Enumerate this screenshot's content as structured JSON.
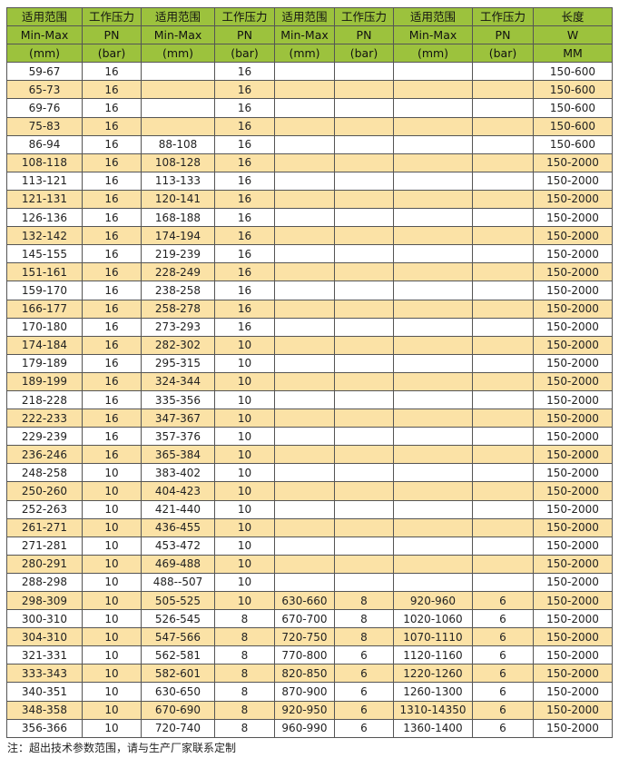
{
  "table": {
    "header": [
      [
        "适用范围",
        "工作压力",
        "适用范围",
        "工作压力",
        "适用范围",
        "工作压力",
        "适用范围",
        "工作压力",
        "长度"
      ],
      [
        "Min-Max",
        "PN",
        "Min-Max",
        "PN",
        "Min-Max",
        "PN",
        "Min-Max",
        "PN",
        "W"
      ],
      [
        "(mm)",
        "(bar)",
        "(mm)",
        "(bar)",
        "(mm)",
        "(bar)",
        "(mm)",
        "(bar)",
        "MM"
      ]
    ],
    "rows": [
      [
        "59-67",
        "16",
        null,
        "16",
        null,
        null,
        null,
        null,
        "150-600"
      ],
      [
        "65-73",
        "16",
        null,
        "16",
        null,
        null,
        null,
        null,
        "150-600"
      ],
      [
        "69-76",
        "16",
        null,
        "16",
        null,
        null,
        null,
        null,
        "150-600"
      ],
      [
        "75-83",
        "16",
        null,
        "16",
        null,
        null,
        null,
        null,
        "150-600"
      ],
      [
        "86-94",
        "16",
        "88-108",
        "16",
        null,
        null,
        null,
        null,
        "150-600"
      ],
      [
        "108-118",
        "16",
        "108-128",
        "16",
        null,
        null,
        null,
        null,
        "150-2000"
      ],
      [
        "113-121",
        "16",
        "113-133",
        "16",
        null,
        null,
        null,
        null,
        "150-2000"
      ],
      [
        "121-131",
        "16",
        "120-141",
        "16",
        null,
        null,
        null,
        null,
        "150-2000"
      ],
      [
        "126-136",
        "16",
        "168-188",
        "16",
        null,
        null,
        null,
        null,
        "150-2000"
      ],
      [
        "132-142",
        "16",
        "174-194",
        "16",
        null,
        null,
        null,
        null,
        "150-2000"
      ],
      [
        "145-155",
        "16",
        "219-239",
        "16",
        null,
        null,
        null,
        null,
        "150-2000"
      ],
      [
        "151-161",
        "16",
        "228-249",
        "16",
        null,
        null,
        null,
        null,
        "150-2000"
      ],
      [
        "159-170",
        "16",
        "238-258",
        "16",
        null,
        null,
        null,
        null,
        "150-2000"
      ],
      [
        "166-177",
        "16",
        "258-278",
        "16",
        null,
        null,
        null,
        null,
        "150-2000"
      ],
      [
        "170-180",
        "16",
        "273-293",
        "16",
        null,
        null,
        null,
        null,
        "150-2000"
      ],
      [
        "174-184",
        "16",
        "282-302",
        "10",
        null,
        null,
        null,
        null,
        "150-2000"
      ],
      [
        "179-189",
        "16",
        "295-315",
        "10",
        null,
        null,
        null,
        null,
        "150-2000"
      ],
      [
        "189-199",
        "16",
        "324-344",
        "10",
        null,
        null,
        null,
        null,
        "150-2000"
      ],
      [
        "218-228",
        "16",
        "335-356",
        "10",
        null,
        null,
        null,
        null,
        "150-2000"
      ],
      [
        "222-233",
        "16",
        "347-367",
        "10",
        null,
        null,
        null,
        null,
        "150-2000"
      ],
      [
        "229-239",
        "16",
        "357-376",
        "10",
        null,
        null,
        null,
        null,
        "150-2000"
      ],
      [
        "236-246",
        "16",
        "365-384",
        "10",
        null,
        null,
        null,
        null,
        "150-2000"
      ],
      [
        "248-258",
        "10",
        "383-402",
        "10",
        null,
        null,
        null,
        null,
        "150-2000"
      ],
      [
        "250-260",
        "10",
        "404-423",
        "10",
        null,
        null,
        null,
        null,
        "150-2000"
      ],
      [
        "252-263",
        "10",
        "421-440",
        "10",
        null,
        null,
        null,
        null,
        "150-2000"
      ],
      [
        "261-271",
        "10",
        "436-455",
        "10",
        null,
        null,
        null,
        null,
        "150-2000"
      ],
      [
        "271-281",
        "10",
        "453-472",
        "10",
        null,
        null,
        null,
        null,
        "150-2000"
      ],
      [
        "280-291",
        "10",
        "469-488",
        "10",
        null,
        null,
        null,
        null,
        "150-2000"
      ],
      [
        "288-298",
        "10",
        "488--507",
        "10",
        null,
        null,
        null,
        null,
        "150-2000"
      ],
      [
        "298-309",
        "10",
        "505-525",
        "10",
        "630-660",
        "8",
        "920-960",
        "6",
        "150-2000"
      ],
      [
        "300-310",
        "10",
        "526-545",
        "8",
        "670-700",
        "8",
        "1020-1060",
        "6",
        "150-2000"
      ],
      [
        "304-310",
        "10",
        "547-566",
        "8",
        "720-750",
        "8",
        "1070-1110",
        "6",
        "150-2000"
      ],
      [
        "321-331",
        "10",
        "562-581",
        "8",
        "770-800",
        "6",
        "1120-1160",
        "6",
        "150-2000"
      ],
      [
        "333-343",
        "10",
        "582-601",
        "8",
        "820-850",
        "6",
        "1220-1260",
        "6",
        "150-2000"
      ],
      [
        "340-351",
        "10",
        "630-650",
        "8",
        "870-900",
        "6",
        "1260-1300",
        "6",
        "150-2000"
      ],
      [
        "348-358",
        "10",
        "670-690",
        "8",
        "920-950",
        "6",
        "1310-14350",
        "6",
        "150-2000"
      ],
      [
        "356-366",
        "10",
        "720-740",
        "8",
        "960-990",
        "6",
        "1360-1400",
        "6",
        "150-2000"
      ]
    ],
    "note": "注：超出技术参数范围，请与生产厂家联系定制"
  }
}
